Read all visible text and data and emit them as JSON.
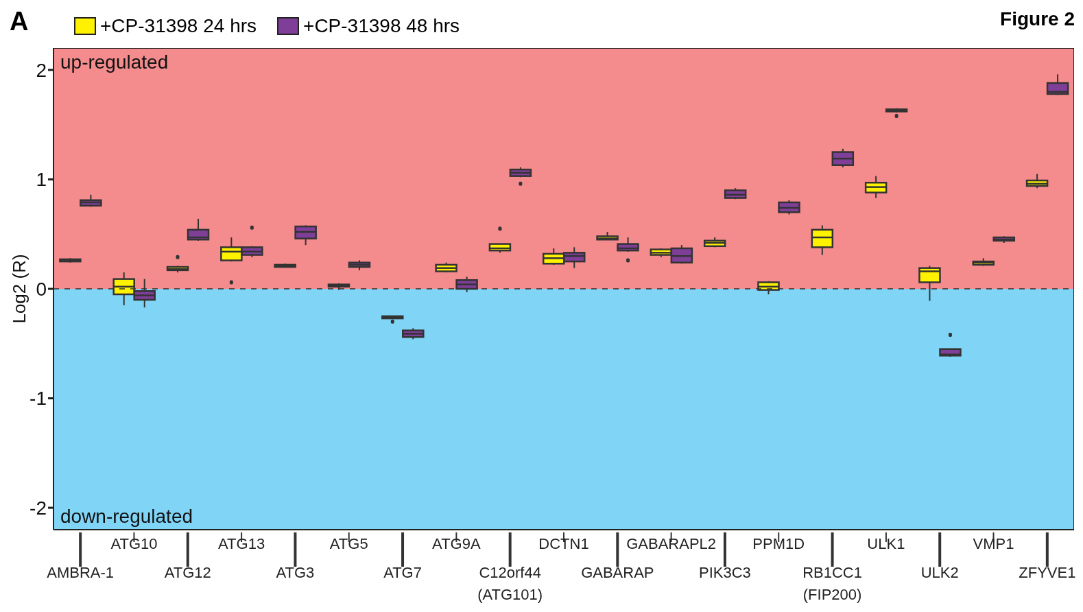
{
  "chart_data": {
    "type": "box",
    "title": "Figure 2",
    "ylabel": "Log2 (R)",
    "annotations": [
      "A"
    ],
    "categories": [
      "AMBRA-1",
      "ATG10",
      "ATG12",
      "ATG13",
      "ATG3",
      "ATG5",
      "ATG7",
      "ATG9A",
      "C12orf44\n(ATG101)",
      "DCTN1",
      "GABARAP",
      "GABARAPL2",
      "PIK3C3",
      "PPM1D",
      "RB1CC1\n(FIP200)",
      "ULK1",
      "ULK2",
      "VMP1",
      "ZFYVE1"
    ],
    "series": [
      {
        "name": "+CP-31398 24 hrs",
        "color": "#fff200",
        "boxes": [
          {
            "low": 0.24,
            "q1": 0.25,
            "median": 0.26,
            "q3": 0.27,
            "high": 0.28
          },
          {
            "low": -0.15,
            "q1": -0.05,
            "median": 0.02,
            "q3": 0.09,
            "high": 0.15
          },
          {
            "low": 0.15,
            "q1": 0.17,
            "median": 0.18,
            "q3": 0.2,
            "high": 0.21,
            "outliers": [
              0.29
            ]
          },
          {
            "low": 0.25,
            "q1": 0.26,
            "median": 0.34,
            "q3": 0.38,
            "high": 0.47,
            "outliers": [
              0.06
            ]
          },
          {
            "low": 0.2,
            "q1": 0.2,
            "median": 0.21,
            "q3": 0.22,
            "high": 0.23
          },
          {
            "low": -0.01,
            "q1": 0.02,
            "median": 0.03,
            "q3": 0.04,
            "high": 0.05
          },
          {
            "low": -0.27,
            "q1": -0.27,
            "median": -0.26,
            "q3": -0.25,
            "high": -0.25,
            "outliers": [
              -0.3
            ]
          },
          {
            "low": 0.15,
            "q1": 0.16,
            "median": 0.19,
            "q3": 0.22,
            "high": 0.24
          },
          {
            "low": 0.33,
            "q1": 0.35,
            "median": 0.37,
            "q3": 0.41,
            "high": 0.41,
            "outliers": [
              0.55
            ]
          },
          {
            "low": 0.22,
            "q1": 0.23,
            "median": 0.28,
            "q3": 0.32,
            "high": 0.37
          },
          {
            "low": 0.45,
            "q1": 0.45,
            "median": 0.46,
            "q3": 0.48,
            "high": 0.52
          },
          {
            "low": 0.29,
            "q1": 0.31,
            "median": 0.33,
            "q3": 0.36,
            "high": 0.37
          },
          {
            "low": 0.38,
            "q1": 0.39,
            "median": 0.42,
            "q3": 0.44,
            "high": 0.47
          },
          {
            "low": -0.05,
            "q1": -0.01,
            "median": 0.02,
            "q3": 0.06,
            "high": 0.07
          },
          {
            "low": 0.31,
            "q1": 0.38,
            "median": 0.47,
            "q3": 0.54,
            "high": 0.58
          },
          {
            "low": 0.83,
            "q1": 0.88,
            "median": 0.93,
            "q3": 0.97,
            "high": 1.03
          },
          {
            "low": -0.11,
            "q1": 0.06,
            "median": 0.16,
            "q3": 0.19,
            "high": 0.21
          },
          {
            "low": 0.21,
            "q1": 0.22,
            "median": 0.24,
            "q3": 0.25,
            "high": 0.28
          },
          {
            "low": 0.92,
            "q1": 0.94,
            "median": 0.96,
            "q3": 0.99,
            "high": 1.05
          }
        ]
      },
      {
        "name": "+CP-31398 48 hrs",
        "color": "#7f3f98",
        "boxes": [
          {
            "low": 0.75,
            "q1": 0.76,
            "median": 0.79,
            "q3": 0.81,
            "high": 0.86
          },
          {
            "low": -0.17,
            "q1": -0.1,
            "median": -0.06,
            "q3": -0.02,
            "high": 0.09
          },
          {
            "low": 0.44,
            "q1": 0.45,
            "median": 0.47,
            "q3": 0.54,
            "high": 0.64
          },
          {
            "low": 0.29,
            "q1": 0.31,
            "median": 0.34,
            "q3": 0.38,
            "high": 0.39,
            "outliers": [
              0.56
            ]
          },
          {
            "low": 0.4,
            "q1": 0.46,
            "median": 0.52,
            "q3": 0.57,
            "high": 0.58
          },
          {
            "low": 0.17,
            "q1": 0.2,
            "median": 0.22,
            "q3": 0.24,
            "high": 0.26
          },
          {
            "low": -0.46,
            "q1": -0.44,
            "median": -0.41,
            "q3": -0.38,
            "high": -0.36
          },
          {
            "low": -0.03,
            "q1": 0.0,
            "median": 0.04,
            "q3": 0.08,
            "high": 0.11
          },
          {
            "low": 1.02,
            "q1": 1.03,
            "median": 1.06,
            "q3": 1.09,
            "high": 1.11,
            "outliers": [
              0.96
            ]
          },
          {
            "low": 0.19,
            "q1": 0.25,
            "median": 0.3,
            "q3": 0.33,
            "high": 0.38
          },
          {
            "low": 0.34,
            "q1": 0.35,
            "median": 0.37,
            "q3": 0.41,
            "high": 0.47,
            "outliers": [
              0.26
            ]
          },
          {
            "low": 0.23,
            "q1": 0.24,
            "median": 0.3,
            "q3": 0.37,
            "high": 0.4
          },
          {
            "low": 0.82,
            "q1": 0.83,
            "median": 0.86,
            "q3": 0.9,
            "high": 0.92
          },
          {
            "low": 0.68,
            "q1": 0.7,
            "median": 0.74,
            "q3": 0.79,
            "high": 0.81
          },
          {
            "low": 1.11,
            "q1": 1.13,
            "median": 1.19,
            "q3": 1.25,
            "high": 1.28
          },
          {
            "low": 1.61,
            "q1": 1.62,
            "median": 1.63,
            "q3": 1.64,
            "high": 1.65,
            "outliers": [
              1.58
            ]
          },
          {
            "low": -0.62,
            "q1": -0.61,
            "median": -0.6,
            "q3": -0.55,
            "high": -0.55,
            "outliers": [
              -0.42
            ]
          },
          {
            "low": 0.42,
            "q1": 0.44,
            "median": 0.45,
            "q3": 0.47,
            "high": 0.48
          },
          {
            "low": 1.77,
            "q1": 1.78,
            "median": 1.8,
            "q3": 1.88,
            "high": 1.96
          }
        ]
      }
    ],
    "ylim": [
      -2.2,
      2.2
    ],
    "yticks": [
      -2,
      -1,
      0,
      1,
      2
    ],
    "bands": [
      {
        "axis": "y",
        "from": 0,
        "to": 2.2,
        "label": "up-regulated",
        "color": "#f48b8d"
      },
      {
        "axis": "y",
        "from": -2.2,
        "to": 0,
        "label": "down-regulated",
        "color": "#80d4f6"
      }
    ],
    "ref_lines": [
      {
        "axis": "y",
        "value": 0,
        "line_style": "dashed"
      }
    ],
    "legend": "top left"
  }
}
